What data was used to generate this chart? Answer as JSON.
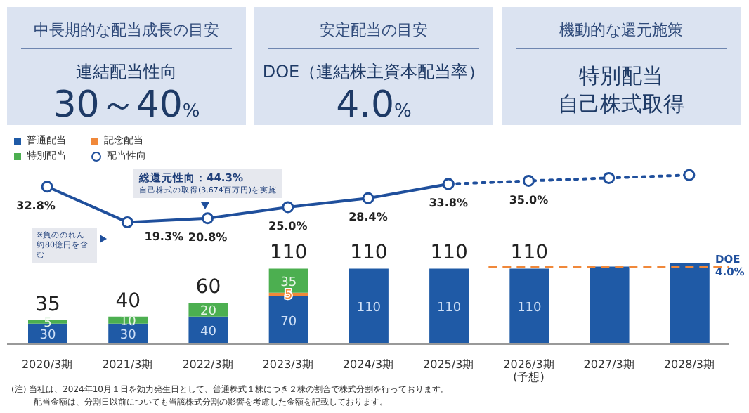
{
  "chart_data": [
    {
      "type": "other",
      "title": "中長期的な配当成長の目安",
      "annotations": [
        "連結配当性向",
        "30～40%"
      ]
    },
    {
      "type": "other",
      "title": "安定配当の目安",
      "annotations": [
        "DOE（連結株主資本配当率）",
        "4.0%"
      ]
    },
    {
      "type": "other",
      "title": "機動的な還元施策",
      "annotations": [
        "特別配当",
        "自己株式取得"
      ]
    },
    {
      "type": "bar",
      "stacked": true,
      "categories": [
        "2020/3期",
        "2021/3期",
        "2022/3期",
        "2023/3期",
        "2024/3期",
        "2025/3期",
        "2026/3期\n(予想)",
        "2027/3期",
        "2028/3期"
      ],
      "series": [
        {
          "name": "普通配当",
          "color": "#1f5aa6",
          "values": [
            30,
            30,
            40,
            70,
            110,
            110,
            110,
            113,
            118
          ],
          "value_labels": [
            "30",
            "30",
            "40",
            "70",
            "110",
            "110",
            "110",
            null,
            null
          ]
        },
        {
          "name": "記念配当",
          "color": "#f0883a",
          "values": [
            null,
            null,
            null,
            5,
            null,
            null,
            null,
            null,
            null
          ],
          "value_labels": [
            null,
            null,
            null,
            "5",
            null,
            null,
            null,
            null,
            null
          ]
        },
        {
          "name": "特別配当",
          "color": "#4caf50",
          "values": [
            5,
            10,
            20,
            35,
            null,
            null,
            null,
            null,
            null
          ],
          "value_labels": [
            "5",
            "10",
            "20",
            "35",
            null,
            null,
            null,
            null,
            null
          ]
        },
        {
          "name": "配当性向",
          "type": "line",
          "axis": "y2",
          "color": "#1f4f9c",
          "marker": "circle",
          "line_style": "solid",
          "values": [
            32.8,
            19.3,
            20.8,
            25.0,
            28.4,
            33.8,
            null,
            null,
            null
          ],
          "value_labels": [
            "32.8%",
            "19.3%",
            "20.8%",
            "25.0%",
            "28.4%",
            "33.8%",
            null,
            null,
            null
          ]
        },
        {
          "type": "line",
          "axis": "y2",
          "color": "#1f4f9c",
          "marker": "circle",
          "line_style": "dotted",
          "values": [
            null,
            null,
            null,
            null,
            null,
            33.8,
            35.0,
            36.1,
            37.2
          ],
          "value_labels": [
            null,
            null,
            null,
            null,
            null,
            null,
            "35.0%",
            null,
            null
          ]
        }
      ],
      "totals": [
        "35",
        "40",
        "60",
        "110",
        "110",
        "110",
        "110",
        null,
        null
      ],
      "ylim": [
        0,
        276
      ],
      "y2lim": [
        -27,
        45
      ],
      "tick_labels": "x",
      "legend": "top left",
      "ref_lines": [
        {
          "axis": "y",
          "value": 112,
          "label": "DOE\n4.0%",
          "color": "#f0883a",
          "line_style": "dashed"
        }
      ],
      "annotations": [
        "総還元性向：44.3%",
        "自己株式の取得(3,674百万円)を実施",
        "※負ののれん約80億円を含む",
        "(注) 当社は、2024年10月１日を効力発生日として、普通株式１株につき２株の割合で株式分割を行っております。",
        "配当金額は、分割日以前についても当該株式分割の影響を考慮した金額を記載しております。"
      ]
    }
  ]
}
